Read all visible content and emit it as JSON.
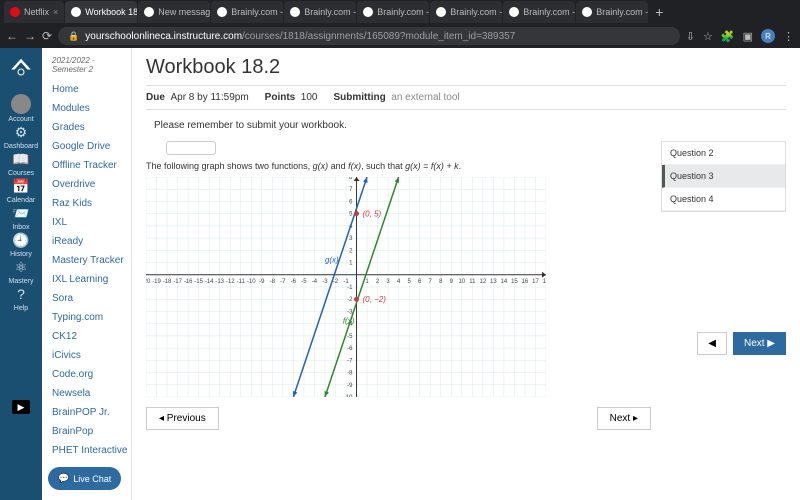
{
  "browser": {
    "tabs": [
      {
        "label": "Netflix",
        "favicon": "#e50914"
      },
      {
        "label": "Workbook 18.",
        "favicon": "#ffffff",
        "active": true
      },
      {
        "label": "New message!",
        "favicon": "#ffffff"
      },
      {
        "label": "Brainly.com -",
        "favicon": "#ffffff"
      },
      {
        "label": "Brainly.com -",
        "favicon": "#ffffff"
      },
      {
        "label": "Brainly.com -",
        "favicon": "#ffffff"
      },
      {
        "label": "Brainly.com -",
        "favicon": "#ffffff"
      },
      {
        "label": "Brainly.com -",
        "favicon": "#ffffff"
      },
      {
        "label": "Brainly.com -",
        "favicon": "#ffffff"
      }
    ],
    "url_host": "yourschoolonlineca.instructure.com",
    "url_path": "/courses/1818/assignments/165089?module_item_id=389357",
    "avatar_letter": "R"
  },
  "global_nav": {
    "items": [
      {
        "icon": "avatar",
        "label": "Account"
      },
      {
        "icon": "dash",
        "label": "Dashboard"
      },
      {
        "icon": "book",
        "label": "Courses"
      },
      {
        "icon": "cal",
        "label": "Calendar"
      },
      {
        "icon": "inbox",
        "label": "Inbox"
      },
      {
        "icon": "hist",
        "label": "History"
      },
      {
        "icon": "mastery",
        "label": "Mastery"
      },
      {
        "icon": "help",
        "label": "Help"
      }
    ]
  },
  "course_nav": {
    "term": "2021/2022 - Semester 2",
    "links": [
      "Home",
      "Modules",
      "Grades",
      "Google Drive",
      "Offline Tracker",
      "Overdrive",
      "Raz Kids",
      "IXL",
      "iReady",
      "Mastery Tracker",
      "IXL Learning",
      "Sora",
      "Typing.com",
      "CK12",
      "iCivics",
      "Code.org",
      "Newsela",
      "BrainPOP Jr.",
      "BrainPop",
      "PHET Interactive"
    ],
    "live_chat": "Live Chat"
  },
  "page": {
    "title": "Workbook 18.2",
    "due_label": "Due",
    "due_value": "Apr 8 by 11:59pm",
    "points_label": "Points",
    "points_value": "100",
    "submitting_label": "Submitting",
    "submitting_value": "an external tool",
    "instruction": "Please remember to submit your workbook.",
    "prev_btn": "◂ Previous",
    "next_btn": "Next ▸"
  },
  "question": {
    "prompt_prefix": "The following graph shows two functions, ",
    "prompt_g": "g(x)",
    "prompt_mid": " and ",
    "prompt_f": "f(x)",
    "prompt_such": ", such that ",
    "prompt_eq": "g(x) = f(x) + k",
    "prompt_suffix": "."
  },
  "graph": {
    "x_range": [
      -20,
      18
    ],
    "y_range": [
      -10,
      8
    ],
    "x_ticks": [
      -20,
      -19,
      -18,
      -17,
      -16,
      -15,
      -14,
      -13,
      -12,
      -11,
      -10,
      -9,
      -8,
      -7,
      -6,
      -5,
      -4,
      -3,
      -2,
      -1,
      1,
      2,
      3,
      4,
      5,
      6,
      7,
      8,
      9,
      10,
      11,
      12,
      13,
      14,
      15,
      16,
      17,
      18
    ],
    "y_ticks": [
      -10,
      -9,
      -8,
      -7,
      -6,
      -5,
      -4,
      -3,
      -2,
      -1,
      1,
      2,
      3,
      4,
      5,
      6,
      7,
      8
    ],
    "line_g": {
      "color": "#2060c0",
      "label": "g(x)",
      "label_pos": [
        -3,
        1
      ],
      "p1": [
        -6,
        -10
      ],
      "p2": [
        1,
        8
      ]
    },
    "line_f": {
      "color": "#2a8a2a",
      "label": "f(x)",
      "label_pos": [
        -1.3,
        -4
      ],
      "p1": [
        -3,
        -10
      ],
      "p2": [
        4,
        8
      ]
    },
    "points": [
      {
        "xy": [
          0,
          5
        ],
        "label": "(0, 5)",
        "color": "#c04040"
      },
      {
        "xy": [
          0,
          -2
        ],
        "label": "(0, −2)",
        "color": "#c04040"
      }
    ],
    "grid_color": "#d8e8ec",
    "axis_color": "#333333",
    "background": "#ffffff"
  },
  "q_sidebar": {
    "items": [
      "Question 2",
      "Question 3",
      "Question 4"
    ],
    "active_index": 1,
    "prev": "◀",
    "next": "Next ▶"
  }
}
